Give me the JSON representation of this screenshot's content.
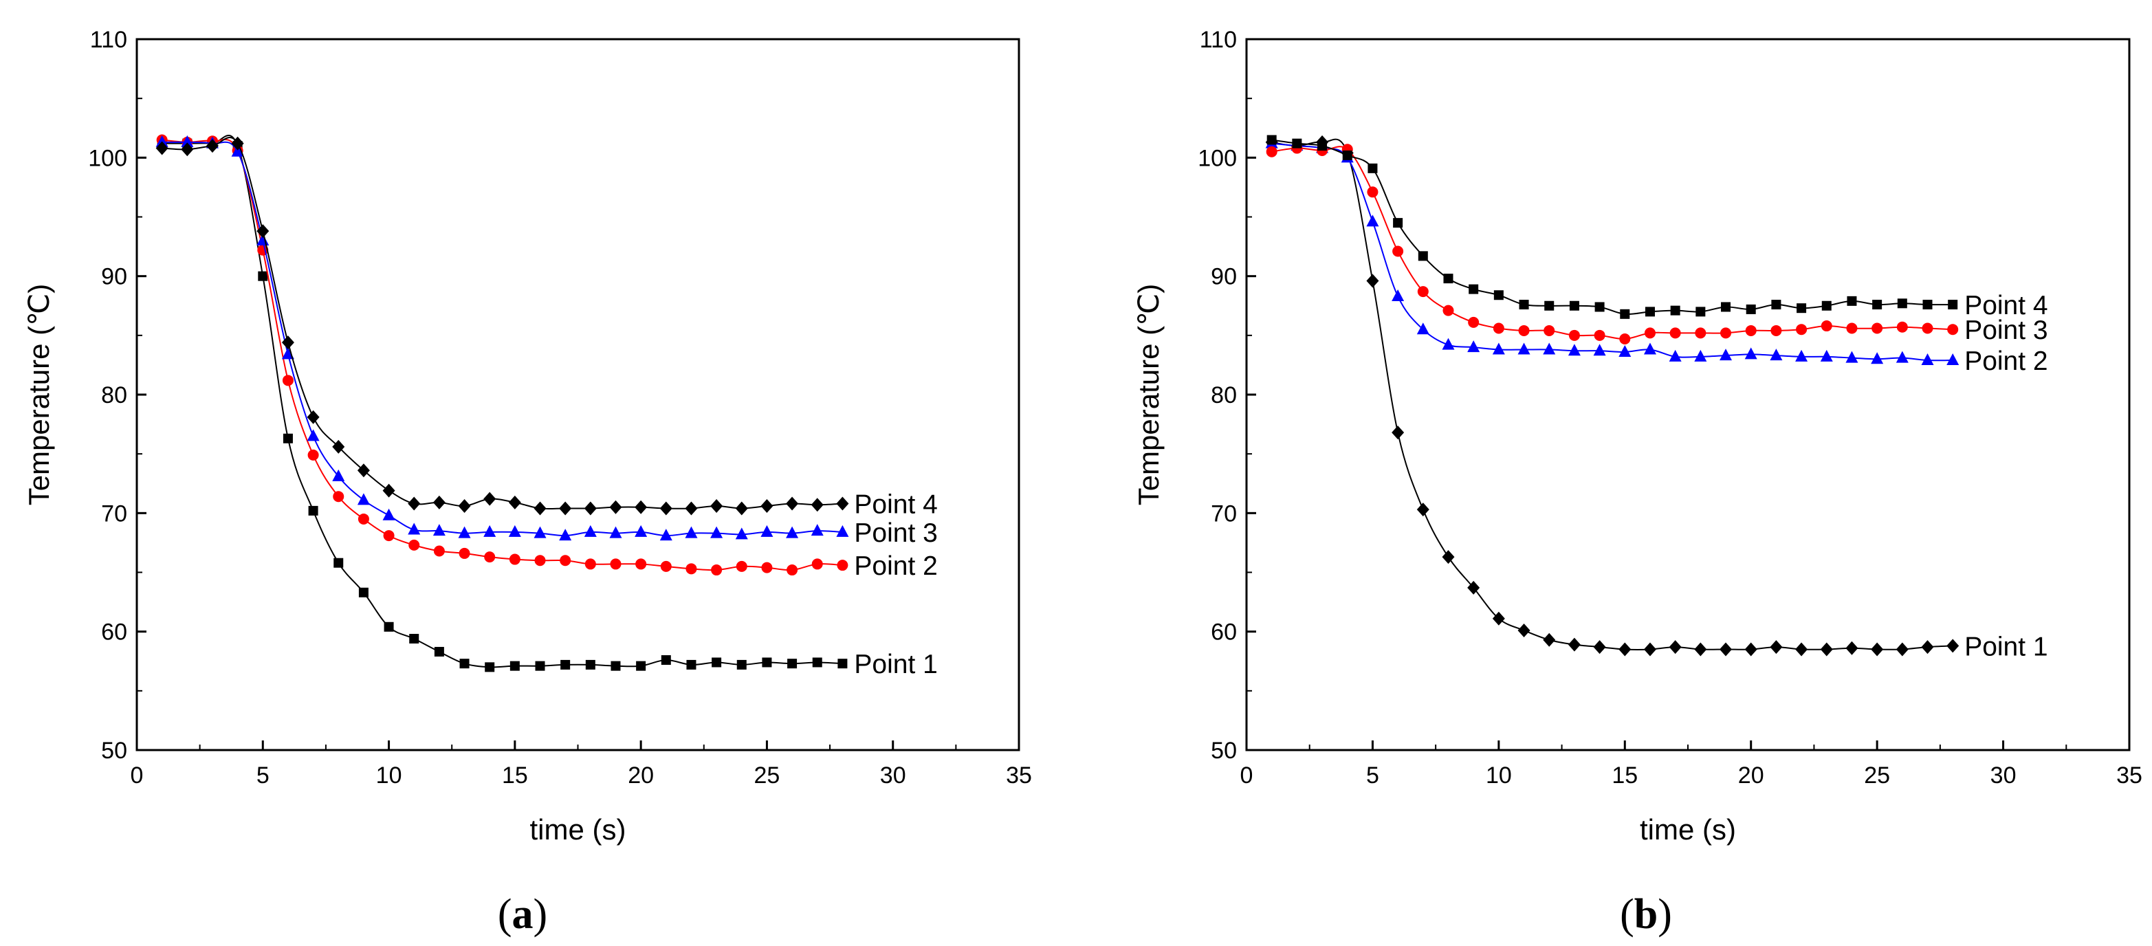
{
  "chart_data": [
    {
      "type": "line",
      "panel_label": {
        "open": "(",
        "letter": "a",
        "close": ")"
      },
      "xlabel": "time (s)",
      "ylabel": "Temperature (℃)",
      "xlim": [
        0,
        35
      ],
      "ylim": [
        50,
        110
      ],
      "xticks": [
        0,
        5,
        10,
        15,
        20,
        25,
        30,
        35
      ],
      "yticks": [
        50,
        60,
        70,
        80,
        90,
        100,
        110
      ],
      "grid": false,
      "x": [
        1,
        2,
        3,
        4,
        5,
        6,
        7,
        8,
        9,
        10,
        11,
        12,
        13,
        14,
        15,
        16,
        17,
        18,
        19,
        20,
        21,
        22,
        23,
        24,
        25,
        26,
        27,
        28
      ],
      "series": [
        {
          "name": "Point 1",
          "color": "#000000",
          "marker": "square",
          "values": [
            101.2,
            101.2,
            101.2,
            101.0,
            90.0,
            76.3,
            70.2,
            65.8,
            63.3,
            60.4,
            59.4,
            58.3,
            57.3,
            57.0,
            57.1,
            57.1,
            57.2,
            57.2,
            57.1,
            57.1,
            57.6,
            57.2,
            57.4,
            57.2,
            57.4,
            57.3,
            57.4,
            57.3
          ]
        },
        {
          "name": "Point 2",
          "color": "#ff0000",
          "marker": "circle",
          "values": [
            101.5,
            101.3,
            101.4,
            100.6,
            92.2,
            81.2,
            74.9,
            71.4,
            69.5,
            68.1,
            67.3,
            66.8,
            66.6,
            66.3,
            66.1,
            66.0,
            66.0,
            65.7,
            65.7,
            65.7,
            65.5,
            65.3,
            65.2,
            65.5,
            65.4,
            65.2,
            65.7,
            65.6
          ]
        },
        {
          "name": "Point 3",
          "color": "#0000ff",
          "marker": "triangle",
          "values": [
            101.3,
            101.3,
            101.2,
            100.5,
            93.0,
            83.4,
            76.5,
            73.1,
            71.1,
            69.8,
            68.6,
            68.5,
            68.3,
            68.4,
            68.4,
            68.3,
            68.1,
            68.4,
            68.3,
            68.4,
            68.1,
            68.3,
            68.3,
            68.2,
            68.4,
            68.3,
            68.5,
            68.4
          ]
        },
        {
          "name": "Point 4",
          "color": "#000000",
          "marker": "diamond",
          "values": [
            100.8,
            100.7,
            101.0,
            101.2,
            93.8,
            84.4,
            78.1,
            75.6,
            73.6,
            71.9,
            70.8,
            70.9,
            70.6,
            71.2,
            70.9,
            70.4,
            70.4,
            70.4,
            70.5,
            70.5,
            70.4,
            70.4,
            70.6,
            70.4,
            70.6,
            70.8,
            70.7,
            70.8
          ]
        }
      ]
    },
    {
      "type": "line",
      "panel_label": {
        "open": "(",
        "letter": "b",
        "close": ")"
      },
      "xlabel": "time (s)",
      "ylabel": "Temperature (℃)",
      "xlim": [
        0,
        35
      ],
      "ylim": [
        50,
        110
      ],
      "xticks": [
        0,
        5,
        10,
        15,
        20,
        25,
        30,
        35
      ],
      "yticks": [
        50,
        60,
        70,
        80,
        90,
        100,
        110
      ],
      "grid": false,
      "x": [
        1,
        2,
        3,
        4,
        5,
        6,
        7,
        8,
        9,
        10,
        11,
        12,
        13,
        14,
        15,
        16,
        17,
        18,
        19,
        20,
        21,
        22,
        23,
        24,
        25,
        26,
        27,
        28
      ],
      "series": [
        {
          "name": "Point 1",
          "color": "#000000",
          "marker": "diamond",
          "values": [
            101.3,
            101.0,
            101.3,
            100.4,
            89.6,
            76.8,
            70.3,
            66.3,
            63.7,
            61.1,
            60.1,
            59.3,
            58.9,
            58.7,
            58.5,
            58.5,
            58.7,
            58.5,
            58.5,
            58.5,
            58.7,
            58.5,
            58.5,
            58.6,
            58.5,
            58.5,
            58.7,
            58.8
          ]
        },
        {
          "name": "Point 2",
          "color": "#0000ff",
          "marker": "triangle",
          "values": [
            101.2,
            101.0,
            100.8,
            100.0,
            94.6,
            88.3,
            85.5,
            84.2,
            84.0,
            83.8,
            83.8,
            83.8,
            83.7,
            83.7,
            83.6,
            83.8,
            83.2,
            83.2,
            83.3,
            83.4,
            83.3,
            83.2,
            83.2,
            83.1,
            83.0,
            83.1,
            82.9,
            82.9
          ]
        },
        {
          "name": "Point 3",
          "color": "#ff0000",
          "marker": "circle",
          "values": [
            100.5,
            100.8,
            100.6,
            100.7,
            97.1,
            92.1,
            88.7,
            87.1,
            86.1,
            85.6,
            85.4,
            85.4,
            85.0,
            85.0,
            84.7,
            85.2,
            85.2,
            85.2,
            85.2,
            85.4,
            85.4,
            85.5,
            85.8,
            85.6,
            85.6,
            85.7,
            85.6,
            85.5
          ]
        },
        {
          "name": "Point 4",
          "color": "#000000",
          "marker": "square",
          "values": [
            101.5,
            101.2,
            101.0,
            100.2,
            99.1,
            94.5,
            91.7,
            89.8,
            88.9,
            88.4,
            87.6,
            87.5,
            87.5,
            87.4,
            86.8,
            87.0,
            87.1,
            87.0,
            87.4,
            87.2,
            87.6,
            87.3,
            87.5,
            87.9,
            87.6,
            87.7,
            87.6,
            87.6
          ]
        }
      ]
    }
  ]
}
